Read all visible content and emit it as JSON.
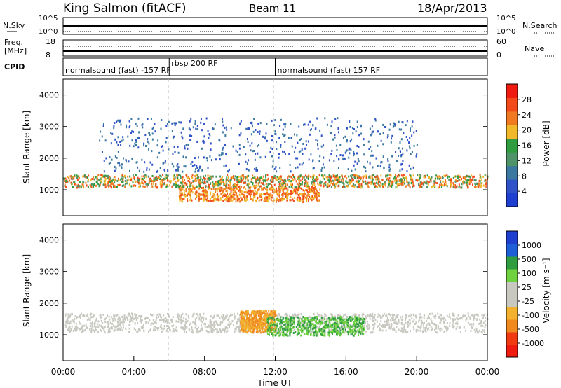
{
  "header": {
    "station": "King Salmon (fitACF)",
    "beam": "Beam 11",
    "date": "18/Apr/2013"
  },
  "summary_panels": {
    "nsky_label": "N.Sky",
    "nsearch_label": "N.Search",
    "noise_ticks": [
      "10^5",
      "10^0"
    ],
    "freq_label_line1": "Freq.",
    "freq_label_line2": "[MHz]",
    "freq_ticks": [
      "18",
      "8"
    ],
    "nave_label": "Nave",
    "nave_ticks": [
      "60",
      "0"
    ],
    "cpid_label": "CPID",
    "cpid_segments": [
      {
        "label": "normalsound (fast) -157 RF",
        "start_hour": 0,
        "end_hour": 6
      },
      {
        "label": "rbsp 200 RF",
        "start_hour": 6,
        "end_hour": 12
      },
      {
        "label": "normalsound (fast) 157 RF",
        "start_hour": 12,
        "end_hour": 24
      }
    ]
  },
  "colors": {
    "power_scale": [
      "#1f3fd0",
      "#2f52c8",
      "#3a78a0",
      "#4f9468",
      "#2f9c40",
      "#f0b82a",
      "#f07a22",
      "#f24a1a",
      "#ef1a10"
    ],
    "velocity_scale": [
      "#ef1a10",
      "#ef3a12",
      "#f08a20",
      "#f2b230",
      "#c8c8c0",
      "#c8c8c0",
      "#6fd040",
      "#2f9c40",
      "#1e5fd8",
      "#1f3fd0"
    ]
  },
  "chart_data": [
    {
      "type": "heatmap",
      "name": "power",
      "xlabel": "",
      "ylabel": "Slant Range [km]",
      "xlim": [
        0,
        24
      ],
      "ylim": [
        180,
        4500
      ],
      "yticks": [
        1000,
        2000,
        3000,
        4000
      ],
      "colorbar": {
        "label": "Power [dB]",
        "ticks": [
          4,
          8,
          12,
          16,
          20,
          24,
          28
        ],
        "range": [
          0,
          32
        ]
      },
      "features": [
        {
          "desc": "Main echo band",
          "x_range_hours": [
            0,
            24
          ],
          "range_km": [
            1100,
            1500
          ],
          "power_db": [
            12,
            28
          ]
        },
        {
          "desc": "Lower band",
          "x_range_hours": [
            6.5,
            14.5
          ],
          "range_km": [
            650,
            1100
          ],
          "power_db": [
            20,
            30
          ]
        },
        {
          "desc": "Upper scatter",
          "x_range_hours": [
            2,
            20
          ],
          "range_km": [
            1600,
            3300
          ],
          "power_db": [
            4,
            10
          ]
        }
      ]
    },
    {
      "type": "heatmap",
      "name": "velocity",
      "xlabel": "Time UT",
      "ylabel": "Slant Range [km]",
      "xlim": [
        0,
        24
      ],
      "ylim": [
        180,
        4500
      ],
      "yticks": [
        1000,
        2000,
        3000,
        4000
      ],
      "xticks": [
        "00:00",
        "04:00",
        "08:00",
        "12:00",
        "16:00",
        "20:00",
        "00:00"
      ],
      "colorbar": {
        "label": "Velocity [m s⁻¹]",
        "ticks": [
          "1000",
          "500",
          "100",
          "25",
          "-25",
          "-100",
          "-500",
          "-1000"
        ]
      },
      "features": [
        {
          "desc": "Grey low-velocity band",
          "x_range_hours": [
            0,
            24
          ],
          "range_km": [
            1100,
            1700
          ],
          "velocity": [
            -25,
            25
          ]
        },
        {
          "desc": "Orange negative patch",
          "x_range_hours": [
            10,
            12
          ],
          "range_km": [
            1100,
            1800
          ],
          "velocity": [
            -500,
            -100
          ]
        },
        {
          "desc": "Green positive band",
          "x_range_hours": [
            11.5,
            17
          ],
          "range_km": [
            1000,
            1600
          ],
          "velocity": [
            25,
            100
          ]
        }
      ]
    }
  ]
}
